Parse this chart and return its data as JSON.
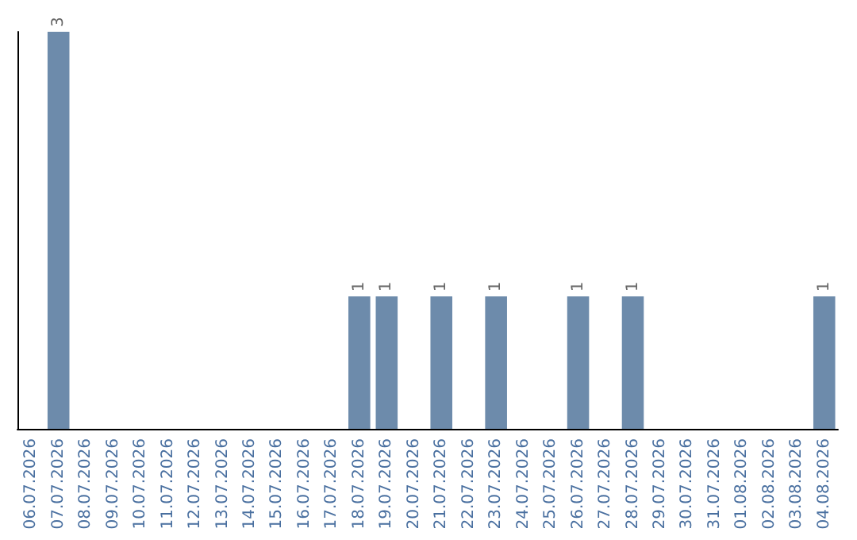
{
  "chart_data": {
    "type": "bar",
    "categories": [
      "06.07.2026",
      "07.07.2026",
      "08.07.2026",
      "09.07.2026",
      "10.07.2026",
      "11.07.2026",
      "12.07.2026",
      "13.07.2026",
      "14.07.2026",
      "15.07.2026",
      "16.07.2026",
      "17.07.2026",
      "18.07.2026",
      "19.07.2026",
      "20.07.2026",
      "21.07.2026",
      "22.07.2026",
      "23.07.2026",
      "24.07.2026",
      "25.07.2026",
      "26.07.2026",
      "27.07.2026",
      "28.07.2026",
      "29.07.2026",
      "30.07.2026",
      "31.07.2026",
      "01.08.2026",
      "02.08.2026",
      "03.08.2026",
      "04.08.2026"
    ],
    "values": [
      0,
      3,
      0,
      0,
      0,
      0,
      0,
      0,
      0,
      0,
      0,
      0,
      1,
      1,
      0,
      1,
      0,
      1,
      0,
      0,
      1,
      0,
      1,
      0,
      0,
      0,
      0,
      0,
      0,
      1
    ],
    "value_labels": [
      null,
      "3",
      null,
      null,
      null,
      null,
      null,
      null,
      null,
      null,
      null,
      null,
      "1",
      "1",
      null,
      "1",
      null,
      "1",
      null,
      null,
      "1",
      null,
      "1",
      null,
      null,
      null,
      null,
      null,
      null,
      "1"
    ],
    "color": "#6d8bab",
    "tick_labels": "x"
  }
}
